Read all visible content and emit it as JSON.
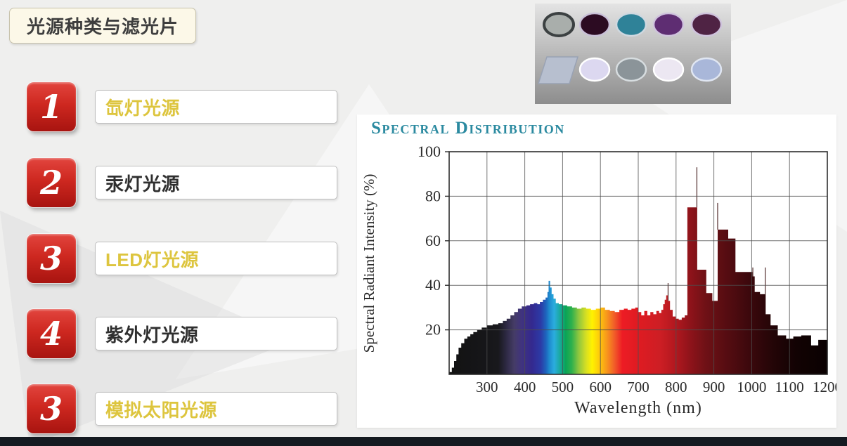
{
  "slide": {
    "title": "光源种类与滤光片"
  },
  "list": {
    "items": [
      {
        "number": "1",
        "label": "氙灯光源",
        "color": "#ddc53e"
      },
      {
        "number": "2",
        "label": "汞灯光源",
        "color": "#2f2f2f"
      },
      {
        "number": "3",
        "label": "LED灯光源",
        "color": "#ddc53e"
      },
      {
        "number": "4",
        "label": "紫外灯光源",
        "color": "#2f2f2f"
      },
      {
        "number": "3",
        "label": "模拟太阳光源",
        "color": "#ddc53e"
      }
    ]
  },
  "filters": {
    "bg_top": "#e4e4e4",
    "bg_bottom": "#8d8d8d",
    "row1": [
      {
        "shape": "disc",
        "face": "#a9aeab",
        "rim": "#3c4142",
        "rim_width": 4
      },
      {
        "shape": "disc",
        "face": "#2c0b22",
        "rim": "#c9c0d8",
        "rim_width": 2.5
      },
      {
        "shape": "disc",
        "face": "#2f8298",
        "rim": "#cfd8e0",
        "rim_width": 2.5
      },
      {
        "shape": "disc",
        "face": "#5e2d72",
        "rim": "#cfc3dd",
        "rim_width": 2.5
      },
      {
        "shape": "disc",
        "face": "#4f2344",
        "rim": "#cfc3dd",
        "rim_width": 2.5
      }
    ],
    "row2": [
      {
        "shape": "plate",
        "face": "#b7bfcf",
        "rim": "#99a2b4",
        "rim_width": 1.5
      },
      {
        "shape": "disc",
        "face": "#dcd8f0",
        "rim": "#ffffff",
        "rim_width": 2.5
      },
      {
        "shape": "disc",
        "face": "#8b9499",
        "rim": "#d7dde0",
        "rim_width": 2.5
      },
      {
        "shape": "disc",
        "face": "#ece7f2",
        "rim": "#ffffff",
        "rim_width": 2.5
      },
      {
        "shape": "disc",
        "face": "#a9b7d9",
        "rim": "#e0e6f2",
        "rim_width": 2.5
      }
    ]
  },
  "chart_data": {
    "type": "area",
    "title": "Spectral Distribution",
    "title_color": "#2b8aa0",
    "xlabel": "Wavelength (nm)",
    "ylabel": "Spectral Radiant Intensity (%)",
    "xlim": [
      200,
      1200
    ],
    "ylim": [
      0,
      100
    ],
    "x_ticks": [
      300,
      400,
      500,
      600,
      700,
      800,
      900,
      1000,
      1100,
      1200
    ],
    "y_ticks": [
      20,
      40,
      60,
      80,
      100
    ],
    "grid": true,
    "legend": "none",
    "series_note": "stepped spectral radiant intensity of a xenon-type lamp, fill colored by wavelength",
    "steps": [
      [
        200,
        1
      ],
      [
        207,
        3
      ],
      [
        213,
        6
      ],
      [
        219,
        9
      ],
      [
        225,
        12
      ],
      [
        232,
        14
      ],
      [
        240,
        16
      ],
      [
        248,
        17
      ],
      [
        256,
        18
      ],
      [
        264,
        19
      ],
      [
        274,
        20
      ],
      [
        286,
        21
      ],
      [
        300,
        22
      ],
      [
        315,
        22.5
      ],
      [
        330,
        23
      ],
      [
        342,
        24
      ],
      [
        352,
        25
      ],
      [
        362,
        26.5
      ],
      [
        372,
        28
      ],
      [
        382,
        29.5
      ],
      [
        392,
        30.5
      ],
      [
        404,
        31
      ],
      [
        414,
        31.5
      ],
      [
        424,
        32
      ],
      [
        433,
        31.5
      ],
      [
        440,
        32.5
      ],
      [
        448,
        33.5
      ],
      [
        455,
        34.5
      ],
      [
        460,
        37
      ],
      [
        463,
        42
      ],
      [
        467,
        39
      ],
      [
        471,
        36
      ],
      [
        476,
        34
      ],
      [
        482,
        32
      ],
      [
        490,
        31.5
      ],
      [
        500,
        31
      ],
      [
        512,
        30.5
      ],
      [
        525,
        30
      ],
      [
        538,
        29.5
      ],
      [
        550,
        30
      ],
      [
        562,
        29.5
      ],
      [
        575,
        29
      ],
      [
        588,
        29.5
      ],
      [
        600,
        30
      ],
      [
        612,
        29
      ],
      [
        625,
        28.5
      ],
      [
        638,
        28
      ],
      [
        650,
        29
      ],
      [
        662,
        29.5
      ],
      [
        672,
        29
      ],
      [
        682,
        29.5
      ],
      [
        692,
        30
      ],
      [
        700,
        28
      ],
      [
        708,
        26.5
      ],
      [
        716,
        28.5
      ],
      [
        724,
        26.5
      ],
      [
        732,
        28
      ],
      [
        740,
        27
      ],
      [
        748,
        28.5
      ],
      [
        755,
        27.5
      ],
      [
        761,
        29
      ],
      [
        766,
        31.5
      ],
      [
        770,
        33.5
      ],
      [
        774,
        35.5
      ],
      [
        779,
        33
      ],
      [
        784,
        29
      ],
      [
        791,
        26
      ],
      [
        799,
        25
      ],
      [
        807,
        24.5
      ],
      [
        815,
        25.5
      ],
      [
        823,
        26.5
      ],
      [
        830,
        75
      ],
      [
        856,
        47
      ],
      [
        880,
        36.5
      ],
      [
        896,
        33
      ],
      [
        910,
        65
      ],
      [
        938,
        61
      ],
      [
        957,
        46
      ],
      [
        1002,
        44
      ],
      [
        1008,
        37
      ],
      [
        1022,
        36
      ],
      [
        1037,
        27
      ],
      [
        1050,
        22
      ],
      [
        1069,
        17.5
      ],
      [
        1091,
        16
      ],
      [
        1110,
        17
      ],
      [
        1131,
        17.5
      ],
      [
        1157,
        13
      ],
      [
        1176,
        15.5
      ],
      [
        1200,
        15.5
      ]
    ],
    "spikes": [
      [
        779,
        41
      ],
      [
        855,
        93
      ],
      [
        910,
        77
      ],
      [
        1003,
        48
      ],
      [
        1036,
        48
      ]
    ],
    "gradient_stops": [
      [
        200,
        "#121212"
      ],
      [
        330,
        "#18181c"
      ],
      [
        352,
        "#2e2a45"
      ],
      [
        372,
        "#453c66"
      ],
      [
        392,
        "#40337f"
      ],
      [
        418,
        "#34298e"
      ],
      [
        442,
        "#2c3aa6"
      ],
      [
        456,
        "#1e64bd"
      ],
      [
        466,
        "#1f8ed0"
      ],
      [
        478,
        "#2badde"
      ],
      [
        492,
        "#1aa9a2"
      ],
      [
        508,
        "#0aa457"
      ],
      [
        524,
        "#2db04d"
      ],
      [
        542,
        "#8dc63f"
      ],
      [
        562,
        "#d7df23"
      ],
      [
        578,
        "#fff200"
      ],
      [
        598,
        "#fdc70c"
      ],
      [
        618,
        "#f7941d"
      ],
      [
        638,
        "#f15a29"
      ],
      [
        658,
        "#ed1c24"
      ],
      [
        700,
        "#df1b22"
      ],
      [
        758,
        "#cd1e24"
      ],
      [
        798,
        "#b2181f"
      ],
      [
        838,
        "#8e131a"
      ],
      [
        878,
        "#6f1116"
      ],
      [
        938,
        "#540c11"
      ],
      [
        998,
        "#3a080c"
      ],
      [
        1058,
        "#230507"
      ],
      [
        1118,
        "#120203"
      ],
      [
        1200,
        "#0a0101"
      ]
    ]
  }
}
